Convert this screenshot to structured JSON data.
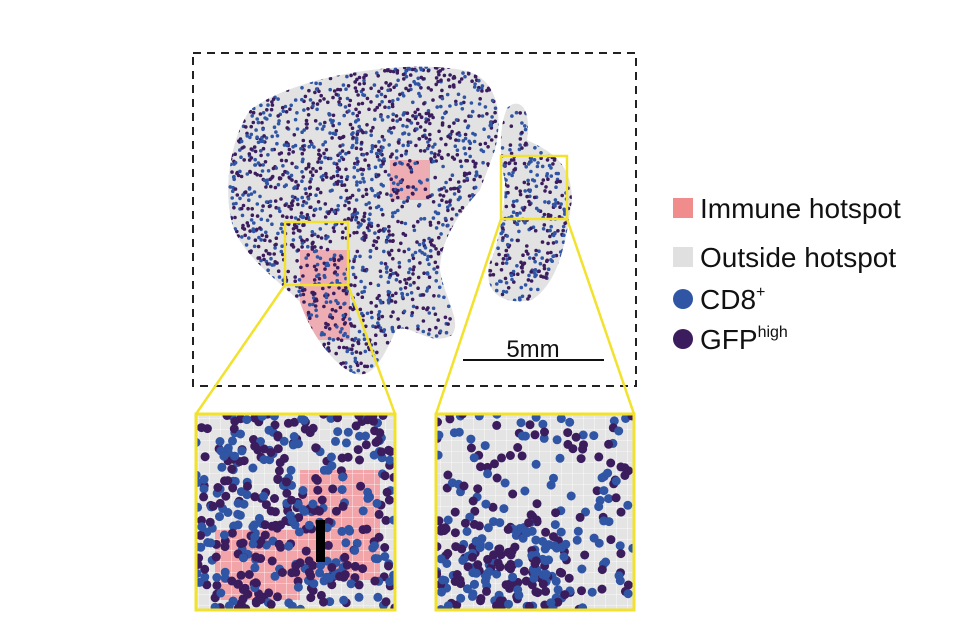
{
  "scale_bar": "5mm",
  "inset_label": "i",
  "legend": [
    {
      "label": "Immune hotspot"
    },
    {
      "label": "Outside hotspot"
    },
    {
      "label": "CD8",
      "sup": "+"
    },
    {
      "label": "GFP",
      "sup": "high"
    }
  ]
}
